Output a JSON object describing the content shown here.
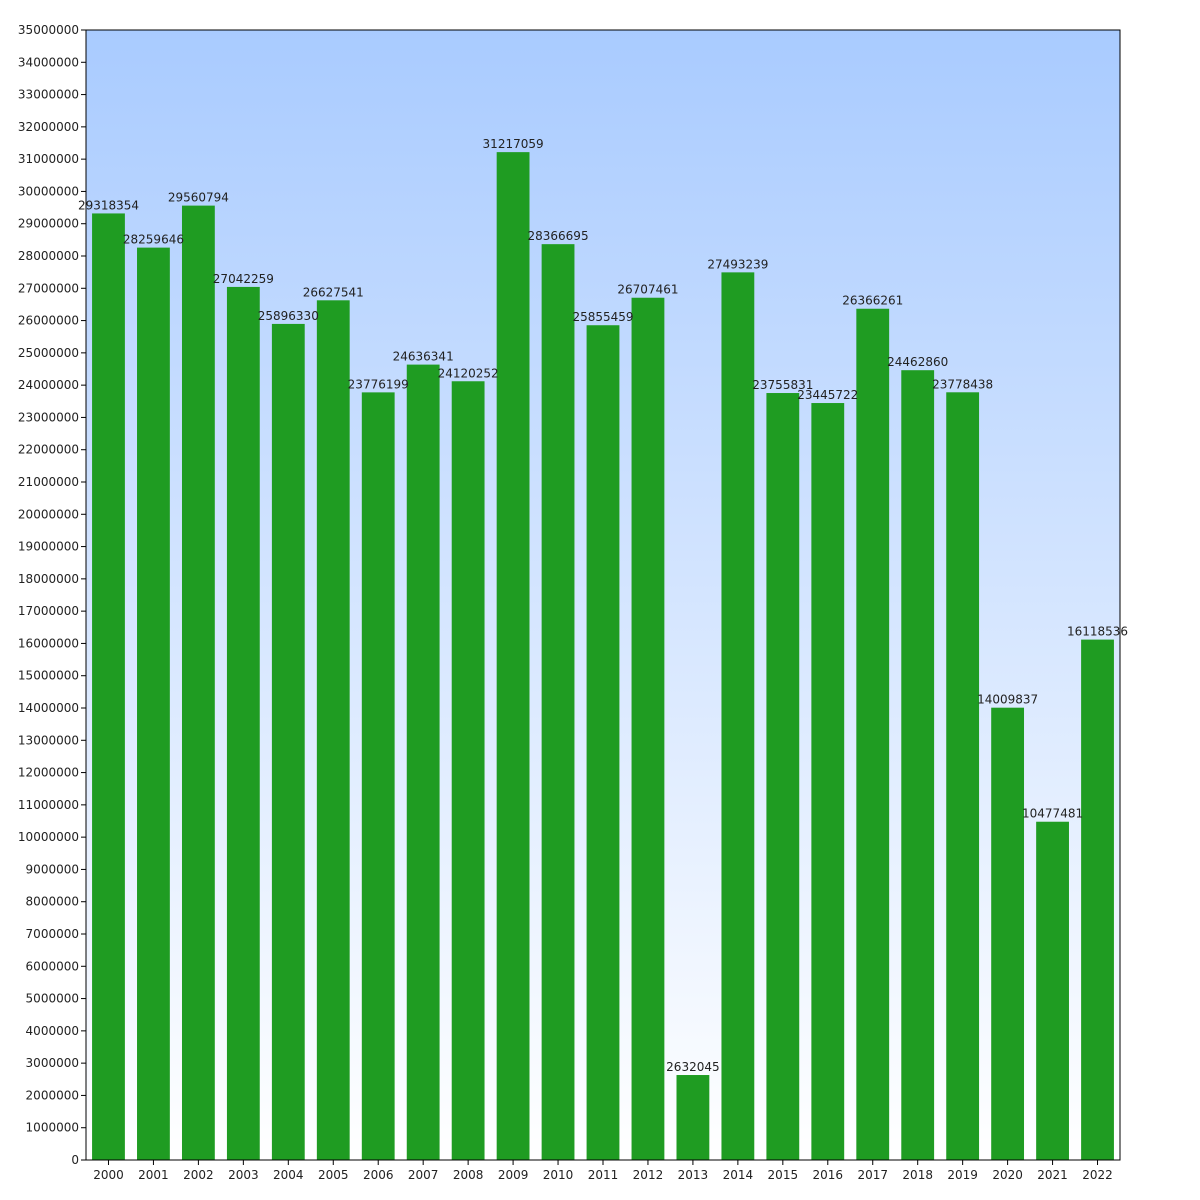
{
  "chart_data": {
    "type": "bar",
    "categories": [
      "2000",
      "2001",
      "2002",
      "2003",
      "2004",
      "2005",
      "2006",
      "2007",
      "2008",
      "2009",
      "2010",
      "2011",
      "2012",
      "2013",
      "2014",
      "2015",
      "2016",
      "2017",
      "2018",
      "2019",
      "2020",
      "2021",
      "2022"
    ],
    "values": [
      29318354,
      28259646,
      29560794,
      27042259,
      25896330,
      26627541,
      23776199,
      24636341,
      24120252,
      31217059,
      28366695,
      25855459,
      26707461,
      2632045,
      27493239,
      23755831,
      23445722,
      26366261,
      24462860,
      23778438,
      14009837,
      10477481,
      16118536
    ],
    "title": "",
    "xlabel": "",
    "ylabel": "",
    "ylim": [
      0,
      35000000
    ],
    "ytick_step": 1000000,
    "grid": false,
    "data_labels": true,
    "colors": {
      "bar": "#1f9c22",
      "background_top": "#a9cbff",
      "background_bottom": "#ffffff",
      "axis": "#000000",
      "text": "#222222"
    }
  }
}
